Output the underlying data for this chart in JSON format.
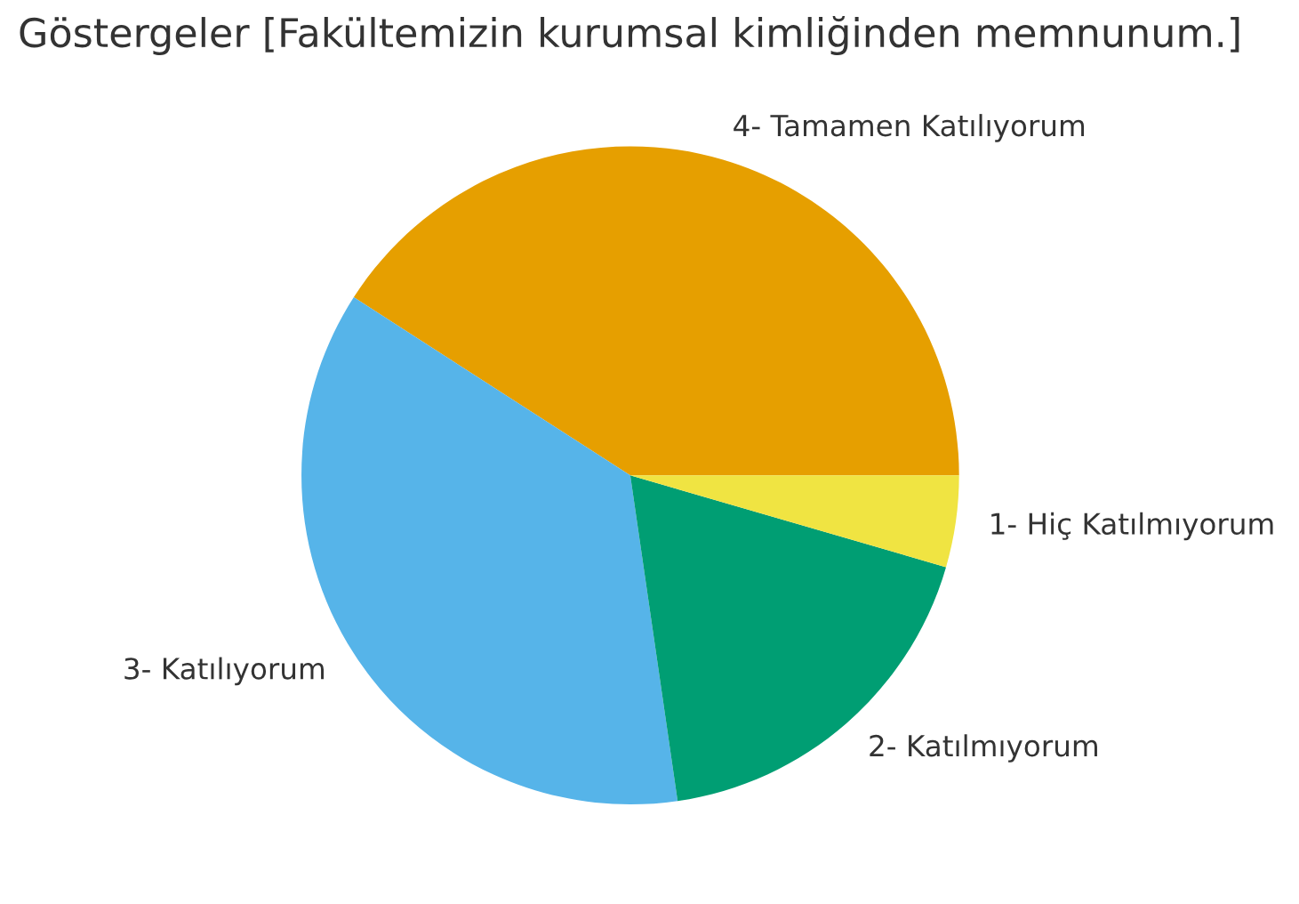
{
  "chart_data": {
    "type": "pie",
    "title": "Göstergeler [Fakültemizin kurumsal kimliğinden memnunum.]",
    "categories": [
      "4- Tamamen Katılıyorum",
      "3- Katılıyorum",
      "2- Katılmıyorum",
      "1- Hiç Katılmıyorum"
    ],
    "values": [
      40.9,
      36.4,
      18.2,
      4.5
    ],
    "colors": [
      "#e69f00",
      "#56b4e9",
      "#009e73",
      "#f0e442"
    ]
  }
}
